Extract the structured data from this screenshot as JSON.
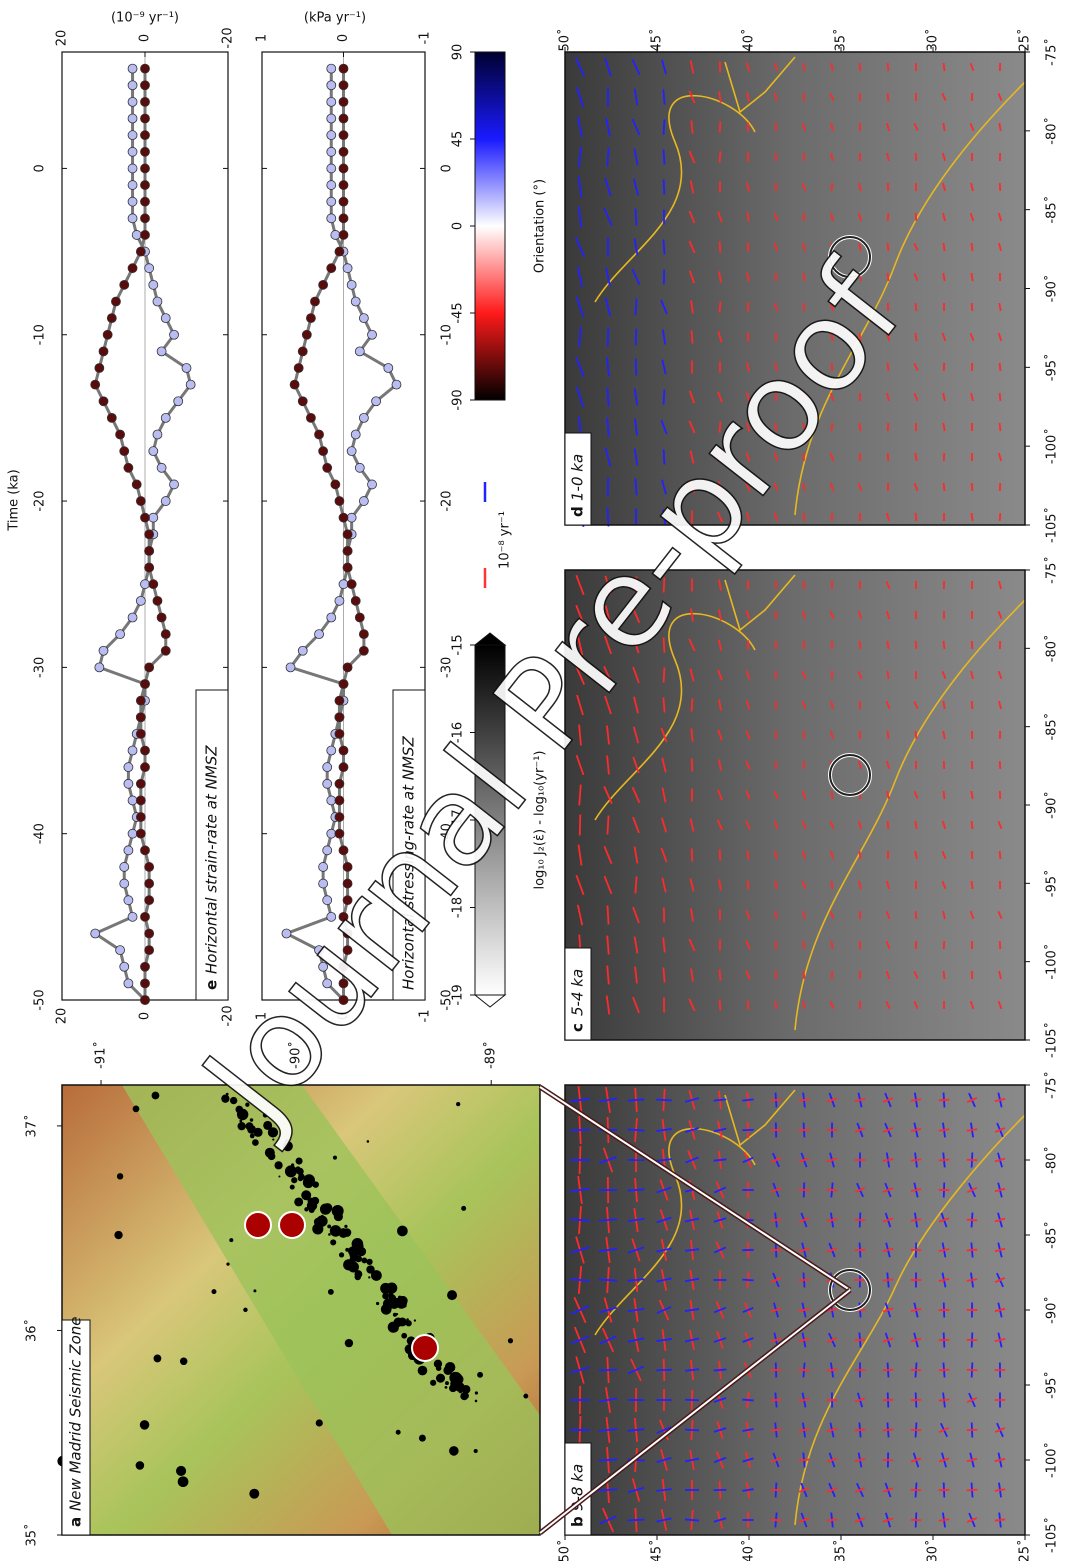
{
  "chart_data": [
    {
      "type": "line",
      "panel": "e",
      "title": "Horizontal strain-rate at NMSZ",
      "unit": "(10⁻⁹ yr⁻¹)",
      "xlabel": "Time (ka)",
      "x": [
        -50,
        -49,
        -48,
        -47,
        -46,
        -45,
        -44,
        -43,
        -42,
        -41,
        -40,
        -39,
        -38,
        -37,
        -36,
        -35,
        -34,
        -33,
        -32,
        -31,
        -30,
        -29,
        -28,
        -27,
        -26,
        -25,
        -24,
        -23,
        -22,
        -21,
        -20,
        -19,
        -18,
        -17,
        -16,
        -15,
        -14,
        -13,
        -12,
        -11,
        -10,
        -9,
        -8,
        -7,
        -6,
        -5,
        -4,
        -3,
        -2,
        -1,
        0,
        1,
        2,
        3,
        4,
        5,
        6
      ],
      "xlim": [
        -50,
        7
      ],
      "xticks": [
        -50,
        -40,
        -30,
        -20,
        -10,
        0
      ],
      "ylim": [
        -20,
        20
      ],
      "yticks": [
        20,
        0,
        -20
      ],
      "series": [
        {
          "color": "#b9bdf2",
          "values": [
            0,
            4,
            5,
            6,
            12,
            3,
            4,
            5,
            5,
            4,
            3,
            2,
            3,
            4,
            4,
            3,
            2,
            1,
            0,
            0,
            11,
            10,
            6,
            3,
            1,
            0,
            -1,
            -1,
            -2,
            -2,
            -5,
            -7,
            -4,
            -2,
            -3,
            -5,
            -8,
            -11,
            -10,
            -4,
            -7,
            -5,
            -3,
            -2,
            -1,
            0,
            2,
            3,
            3,
            3,
            3,
            3,
            3,
            3,
            3,
            3,
            3
          ]
        },
        {
          "color": "#5a0b0b",
          "values": [
            0,
            0,
            0,
            -1,
            -1,
            0,
            -1,
            -1,
            -1,
            0,
            1,
            1,
            1,
            1,
            0,
            0,
            1,
            1,
            1,
            0,
            -1,
            -5,
            -5,
            -4,
            -3,
            -2,
            -1,
            -1,
            -1,
            0,
            1,
            2,
            4,
            5,
            6,
            8,
            10,
            12,
            11,
            10,
            9,
            8,
            7,
            5,
            3,
            1,
            0,
            0,
            0,
            0,
            0,
            0,
            0,
            0,
            0,
            0,
            0
          ]
        }
      ]
    },
    {
      "type": "line",
      "title": "Horizontal stressing-rate at NMSZ",
      "unit": "(kPa yr⁻¹)",
      "x": [
        -50,
        -49,
        -48,
        -47,
        -46,
        -45,
        -44,
        -43,
        -42,
        -41,
        -40,
        -39,
        -38,
        -37,
        -36,
        -35,
        -34,
        -33,
        -32,
        -31,
        -30,
        -29,
        -28,
        -27,
        -26,
        -25,
        -24,
        -23,
        -22,
        -21,
        -20,
        -19,
        -18,
        -17,
        -16,
        -15,
        -14,
        -13,
        -12,
        -11,
        -10,
        -9,
        -8,
        -7,
        -6,
        -5,
        -4,
        -3,
        -2,
        -1,
        0,
        1,
        2,
        3,
        4,
        5,
        6
      ],
      "xlim": [
        -50,
        7
      ],
      "xticks": [
        -50,
        -40,
        -30,
        -20,
        -10,
        0
      ],
      "ylim": [
        -1,
        1
      ],
      "yticks": [
        1,
        0,
        -1
      ],
      "series": [
        {
          "color": "#b9bdf2",
          "values": [
            0,
            0.2,
            0.25,
            0.3,
            0.7,
            0.15,
            0.2,
            0.25,
            0.25,
            0.2,
            0.15,
            0.1,
            0.15,
            0.2,
            0.2,
            0.15,
            0.1,
            0.05,
            0,
            0,
            0.65,
            0.5,
            0.3,
            0.15,
            0.05,
            0,
            -0.05,
            -0.05,
            -0.1,
            -0.1,
            -0.25,
            -0.35,
            -0.2,
            -0.1,
            -0.15,
            -0.25,
            -0.4,
            -0.65,
            -0.55,
            -0.2,
            -0.35,
            -0.25,
            -0.15,
            -0.1,
            -0.05,
            0,
            0.1,
            0.15,
            0.15,
            0.15,
            0.15,
            0.15,
            0.15,
            0.15,
            0.15,
            0.15,
            0.15
          ]
        },
        {
          "color": "#5a0b0b",
          "values": [
            0,
            0,
            0,
            -0.05,
            -0.05,
            0,
            -0.05,
            -0.05,
            -0.05,
            0,
            0.05,
            0.05,
            0.05,
            0.05,
            0,
            0,
            0.05,
            0.05,
            0.05,
            0,
            -0.05,
            -0.25,
            -0.25,
            -0.2,
            -0.15,
            -0.1,
            -0.05,
            -0.05,
            -0.05,
            0,
            0.05,
            0.1,
            0.2,
            0.25,
            0.3,
            0.4,
            0.5,
            0.6,
            0.55,
            0.5,
            0.45,
            0.4,
            0.35,
            0.25,
            0.15,
            0.05,
            0,
            0,
            0,
            0,
            0,
            0,
            0,
            0,
            0,
            0,
            0
          ]
        }
      ]
    }
  ],
  "colorbars": [
    {
      "label": "Orientation (°)",
      "lim": [
        -90,
        90
      ],
      "ticks": [
        -90,
        -45,
        0,
        45,
        90
      ],
      "colors": [
        "#000000",
        "#ff1a1a",
        "#ffffff",
        "#1a1aff",
        "#000030"
      ]
    },
    {
      "label": "log₁₀ J₂(ε̇) - log₁₀(yr⁻¹)",
      "lim": [
        -19,
        -15
      ],
      "ticks": [
        -19,
        -18,
        -17,
        -16,
        -15
      ],
      "colors": [
        "#ffffff",
        "#000000"
      ]
    }
  ],
  "legend": {
    "label": "10⁻⁸ yr⁻¹",
    "colors": [
      "#2222ff",
      "#ff3333"
    ]
  },
  "maps": [
    {
      "panel": "a",
      "title": "New Madrid Seismic Zone",
      "latlim": [
        35,
        37.2
      ],
      "lonlim": [
        -91.2,
        -88.75
      ],
      "latticks": [
        {
          "value": 37,
          "label": "37˚"
        },
        {
          "value": 36,
          "label": "36˚"
        },
        {
          "value": 35,
          "label": "35˚"
        }
      ],
      "lonticks": [
        {
          "value": -91,
          "label": "-91˚"
        },
        {
          "value": -90,
          "label": "-90˚"
        },
        {
          "value": -89,
          "label": "-89˚"
        }
      ]
    },
    {
      "panel": "b",
      "title": "9-8 ka",
      "latlim": [
        25,
        50
      ],
      "lonlim": [
        -105,
        -75
      ],
      "latticks": [
        {
          "value": 50,
          "label": "50˚"
        },
        {
          "value": 45,
          "label": "45˚"
        },
        {
          "value": 40,
          "label": "40˚"
        },
        {
          "value": 35,
          "label": "35˚"
        },
        {
          "value": 30,
          "label": "30˚"
        },
        {
          "value": 25,
          "label": "25˚"
        }
      ],
      "lonticks": [
        {
          "value": -105,
          "label": "-105˚"
        },
        {
          "value": -100,
          "label": "-100˚"
        },
        {
          "value": -95,
          "label": "-95˚"
        },
        {
          "value": -90,
          "label": "-90˚"
        },
        {
          "value": -85,
          "label": "-85˚"
        },
        {
          "value": -80,
          "label": "-80˚"
        },
        {
          "value": -75,
          "label": "-75˚"
        }
      ]
    },
    {
      "panel": "c",
      "title": "5-4 ka",
      "latlim": [
        25,
        50
      ],
      "lonlim": [
        -105,
        -75
      ],
      "latticks": [],
      "lonticks": [
        {
          "value": -105,
          "label": "-105˚"
        },
        {
          "value": -100,
          "label": "-100˚"
        },
        {
          "value": -95,
          "label": "-95˚"
        },
        {
          "value": -90,
          "label": "-90˚"
        },
        {
          "value": -85,
          "label": "-85˚"
        },
        {
          "value": -80,
          "label": "-80˚"
        },
        {
          "value": -75,
          "label": "-75˚"
        }
      ]
    },
    {
      "panel": "d",
      "title": "1-0 ka",
      "latlim": [
        25,
        50
      ],
      "lonlim": [
        -105,
        -75
      ],
      "latticks": [
        {
          "value": 50,
          "label": "50˚"
        },
        {
          "value": 45,
          "label": "45˚"
        },
        {
          "value": 40,
          "label": "40˚"
        },
        {
          "value": 35,
          "label": "35˚"
        },
        {
          "value": 30,
          "label": "30˚"
        },
        {
          "value": 25,
          "label": "25˚"
        }
      ],
      "lonticks": [
        {
          "value": -105,
          "label": "-105˚"
        },
        {
          "value": -100,
          "label": "-100˚"
        },
        {
          "value": -95,
          "label": "-95˚"
        },
        {
          "value": -90,
          "label": "-90˚"
        },
        {
          "value": -85,
          "label": "-85˚"
        },
        {
          "value": -80,
          "label": "-80˚"
        },
        {
          "value": -75,
          "label": "-75˚"
        }
      ]
    }
  ],
  "watermark": "Journal Pre-proof"
}
